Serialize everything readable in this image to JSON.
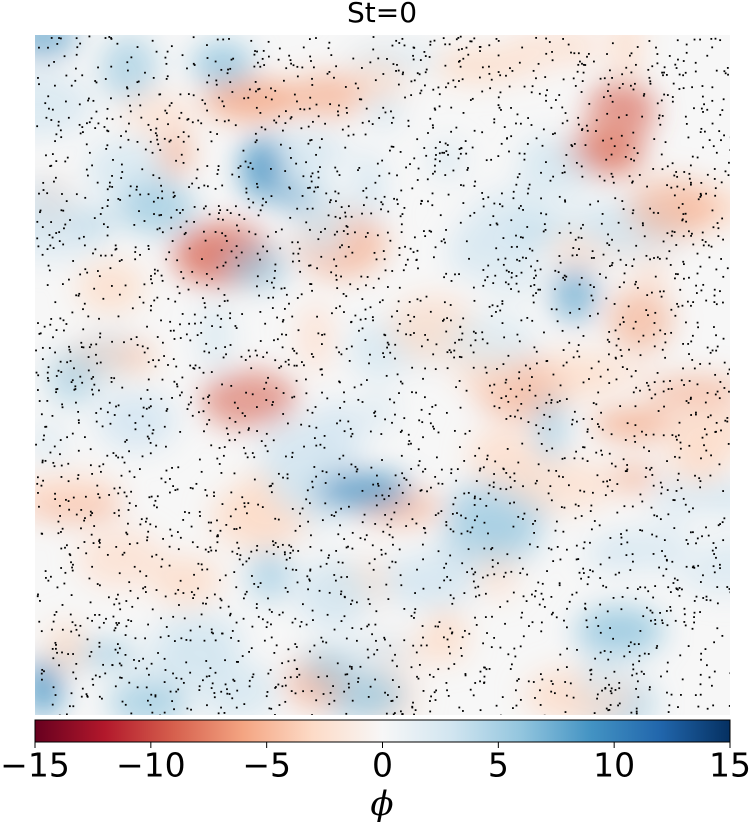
{
  "chart_data": {
    "type": "heatmap",
    "title": "St=0",
    "colorbar_label": "ϕ",
    "colormap": [
      "#67001f",
      "#b2182b",
      "#d6604d",
      "#f4a582",
      "#fddbc7",
      "#f7f7f7",
      "#d1e5f0",
      "#92c5de",
      "#4393c3",
      "#2166ac",
      "#053061"
    ],
    "xlim": [
      -15,
      15
    ],
    "xticks": [
      {
        "value": -15,
        "label": "−15"
      },
      {
        "value": -10,
        "label": "−10"
      },
      {
        "value": -5,
        "label": "−5"
      },
      0,
      5,
      10,
      15
    ]
  }
}
